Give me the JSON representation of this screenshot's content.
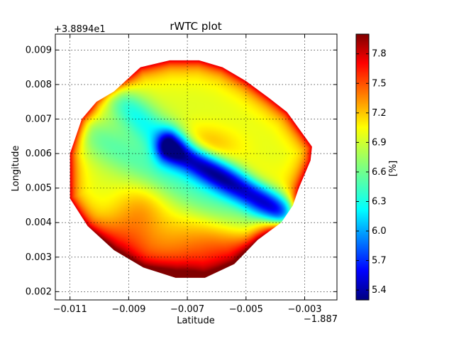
{
  "chart_data": {
    "type": "heatmap",
    "title": "rWTC plot",
    "xlabel": "Latitude",
    "ylabel": "Longitude",
    "x_offset_label": "−1.887",
    "y_offset_label": "+3.8894e1",
    "xlim": [
      -0.0115,
      -0.0019
    ],
    "ylim": [
      0.00176,
      0.00946
    ],
    "x_ticks": [
      -0.011,
      -0.009,
      -0.007,
      -0.005,
      -0.003
    ],
    "x_tick_labels": [
      "−0.011",
      "−0.009",
      "−0.007",
      "−0.005",
      "−0.003"
    ],
    "y_ticks": [
      0.002,
      0.003,
      0.004,
      0.005,
      0.006,
      0.007,
      0.008,
      0.009
    ],
    "y_tick_labels": [
      "0.002",
      "0.003",
      "0.004",
      "0.005",
      "0.006",
      "0.007",
      "0.008",
      "0.009"
    ],
    "grid": true,
    "colormap": "jet",
    "colorbar": {
      "label": "[%]",
      "vmin": 5.3,
      "vmax": 8.0,
      "ticks": [
        5.4,
        5.7,
        6.0,
        6.3,
        6.6,
        6.9,
        7.2,
        7.5,
        7.8
      ],
      "tick_labels": [
        "5.4",
        "5.7",
        "6.0",
        "6.3",
        "6.6",
        "6.9",
        "7.2",
        "7.5",
        "7.8"
      ]
    },
    "field": {
      "base_value": 6.9,
      "boundary_polygon": [
        [
          -0.0095,
          0.0078
        ],
        [
          -0.0086,
          0.0085
        ],
        [
          -0.0076,
          0.0087
        ],
        [
          -0.0066,
          0.0087
        ],
        [
          -0.0058,
          0.0085
        ],
        [
          -0.005,
          0.0081
        ],
        [
          -0.0042,
          0.0076
        ],
        [
          -0.0036,
          0.0072
        ],
        [
          -0.00275,
          0.0062
        ],
        [
          -0.0028,
          0.0058
        ],
        [
          -0.003,
          0.0054
        ],
        [
          -0.0032,
          0.005
        ],
        [
          -0.0034,
          0.0045
        ],
        [
          -0.0038,
          0.004
        ],
        [
          -0.0046,
          0.0035
        ],
        [
          -0.0054,
          0.0028
        ],
        [
          -0.0064,
          0.0024
        ],
        [
          -0.0074,
          0.0024
        ],
        [
          -0.0085,
          0.0027
        ],
        [
          -0.0095,
          0.0032
        ],
        [
          -0.0104,
          0.0039
        ],
        [
          -0.011,
          0.0047
        ],
        [
          -0.011,
          0.006
        ],
        [
          -0.0106,
          0.007
        ],
        [
          -0.0101,
          0.0075
        ]
      ],
      "features": [
        {
          "kind": "band",
          "from": [
            -0.0076,
            0.0062
          ],
          "to": [
            -0.0036,
            0.0042
          ],
          "width": 0.00032,
          "amplitude": -1.55
        },
        {
          "kind": "band",
          "from": [
            -0.0096,
            0.0078
          ],
          "to": [
            -0.0076,
            0.0062
          ],
          "width": 0.0004,
          "amplitude": -0.55
        },
        {
          "kind": "band",
          "from": [
            -0.0102,
            0.0065
          ],
          "to": [
            -0.005,
            0.004
          ],
          "width": 0.00045,
          "amplitude": -0.35
        },
        {
          "kind": "blob",
          "center": [
            -0.0066,
            0.0062
          ],
          "sigma": [
            0.0009,
            0.0004
          ],
          "amplitude": 0.35
        },
        {
          "kind": "blob",
          "center": [
            -0.0086,
            0.0044
          ],
          "sigma": [
            0.0006,
            0.0005
          ],
          "amplitude": 0.25
        },
        {
          "kind": "blob",
          "center": [
            -0.0048,
            0.0049
          ],
          "sigma": [
            0.0006,
            0.0005
          ],
          "amplitude": 0.2
        },
        {
          "kind": "blob",
          "center": [
            -0.006,
            0.0031
          ],
          "sigma": [
            0.0018,
            0.0007
          ],
          "amplitude": 0.5
        },
        {
          "kind": "blob",
          "center": [
            -0.0093,
            0.0034
          ],
          "sigma": [
            0.0008,
            0.0006
          ],
          "amplitude": 0.35
        },
        {
          "kind": "blob",
          "center": [
            -0.0074,
            0.0023
          ],
          "sigma": [
            0.0009,
            0.0004
          ],
          "amplitude": 0.55
        }
      ],
      "edge_amplitude": 0.85
    }
  }
}
